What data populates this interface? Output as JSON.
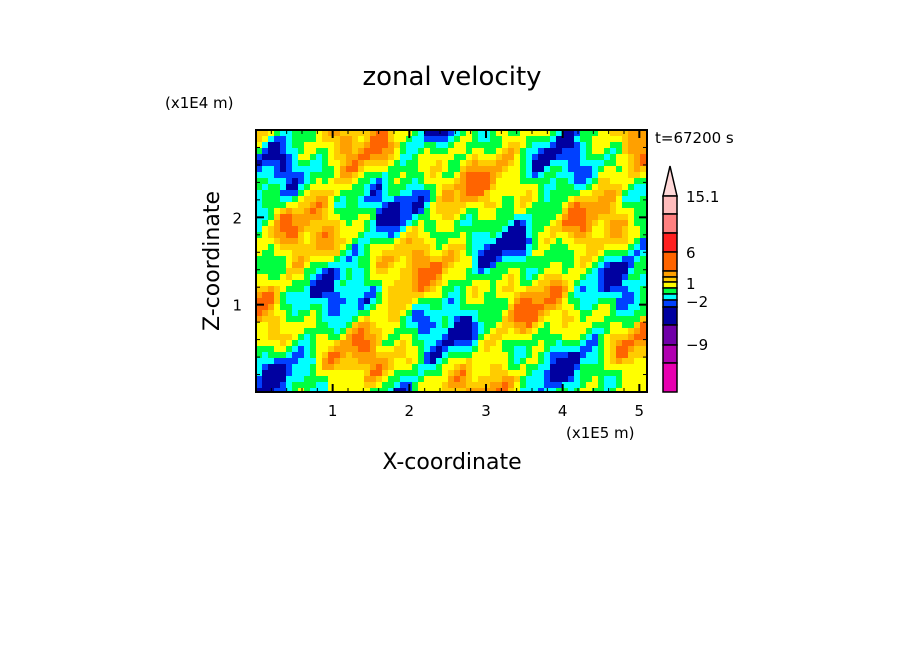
{
  "chart_data": {
    "type": "heatmap",
    "title": "zonal velocity",
    "xlabel": "X-coordinate",
    "ylabel": "Z-coordinate",
    "x_unit_label": "(x1E5 m)",
    "y_unit_label": "(x1E4 m)",
    "time_label": "t=67200 s",
    "xlim": [
      0,
      5.1
    ],
    "ylim": [
      0,
      3.0
    ],
    "x_ticks": [
      1,
      2,
      3,
      4,
      5
    ],
    "x_tick_labels": [
      "1",
      "2",
      "3",
      "4",
      "5"
    ],
    "y_ticks": [
      1,
      2
    ],
    "y_tick_labels": [
      "1",
      "2"
    ],
    "colorbar": {
      "levels_top_to_bottom": [
        {
          "color": "#ffd8d8"
        },
        {
          "color": "#ffbcbc"
        },
        {
          "color": "#ff8080"
        },
        {
          "color": "#ff2020"
        },
        {
          "color": "#ff6400"
        },
        {
          "color": "#ffa000"
        },
        {
          "color": "#ffcc00"
        },
        {
          "color": "#ffff00"
        },
        {
          "color": "#00ff40"
        },
        {
          "color": "#00ffff"
        },
        {
          "color": "#0040ff"
        },
        {
          "color": "#0000a0"
        },
        {
          "color": "#7000a8"
        },
        {
          "color": "#b000b0"
        },
        {
          "color": "#e800b0"
        }
      ],
      "labels": [
        {
          "text": "15.1",
          "value": 15.1
        },
        {
          "text": "6",
          "value": 6
        },
        {
          "text": "1",
          "value": 1
        },
        {
          "text": "−2",
          "value": -2
        },
        {
          "text": "−9",
          "value": -9
        }
      ]
    }
  }
}
